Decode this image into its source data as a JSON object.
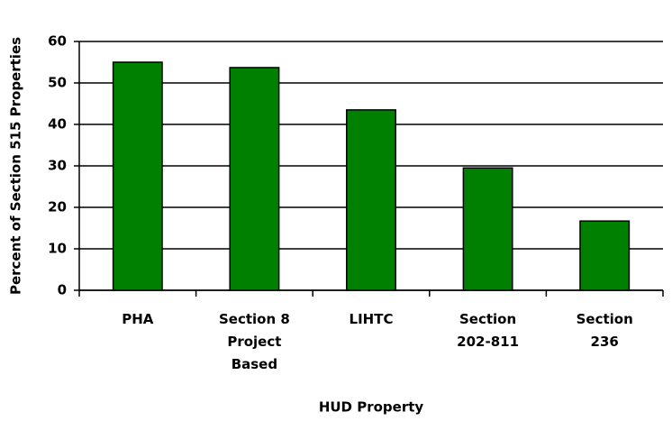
{
  "chart_data": {
    "type": "bar",
    "xlabel": "HUD Property",
    "ylabel": "Percent of Section 515 Properties",
    "categories": [
      "PHA",
      "Section 8 Project Based",
      "LIHTC",
      "Section 202-811",
      "Section 236"
    ],
    "values": [
      55,
      53.7,
      43.5,
      29.5,
      16.7
    ],
    "color": "#008000",
    "ylim": [
      0,
      60
    ],
    "yticks": [
      0,
      10,
      20,
      30,
      40,
      50,
      60
    ],
    "grid": true
  }
}
